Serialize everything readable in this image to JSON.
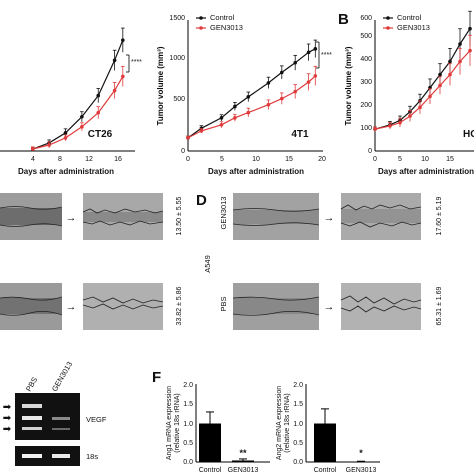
{
  "panels": {
    "b": "B",
    "d": "D",
    "f": "F"
  },
  "colors": {
    "control": "#111111",
    "gen3013": "#e03b3b",
    "bar_fill": "#000000",
    "error_bar": "#000000"
  },
  "scratch": {
    "c": [
      "13.50 ± 5.55",
      "33.82 ± 5.86"
    ],
    "d": {
      "cell_line": "A549",
      "groups": [
        "GEN3013",
        "PBS"
      ],
      "values": [
        "17.60 ± 5.19",
        "65.31 ± 1.69"
      ]
    }
  },
  "gel": {
    "lanes": [
      "PBS",
      "GEN3013"
    ],
    "targets": [
      "VEGF",
      "18s"
    ]
  },
  "chart_data": [
    {
      "type": "line",
      "x": [
        0,
        2,
        5,
        7,
        9,
        12,
        14,
        16,
        18,
        19
      ],
      "series": [
        {
          "name": "Control",
          "values": [
            150,
            260,
            380,
            510,
            620,
            780,
            900,
            1010,
            1130,
            1170
          ],
          "errors": [
            20,
            30,
            35,
            45,
            55,
            65,
            75,
            85,
            95,
            100
          ]
        },
        {
          "name": "GEN3013",
          "values": [
            150,
            230,
            300,
            380,
            440,
            530,
            600,
            680,
            790,
            860
          ],
          "errors": [
            20,
            25,
            35,
            40,
            50,
            55,
            65,
            80,
            95,
            110
          ]
        }
      ],
      "xlim": [
        0,
        20
      ],
      "ylim": [
        0,
        1500
      ]
    },
    {
      "type": "line",
      "x": [
        4,
        6,
        8,
        10,
        12,
        14,
        15
      ],
      "series": [
        {
          "name": "Control",
          "values": [
            2,
            8,
            18,
            34,
            55,
            90,
            110
          ],
          "errors": [
            2,
            3,
            4,
            5,
            7,
            10,
            12
          ]
        },
        {
          "name": "GEN3013",
          "values": [
            2,
            6,
            13,
            24,
            38,
            60,
            74
          ],
          "errors": [
            2,
            3,
            3,
            4,
            6,
            8,
            10
          ]
        }
      ],
      "xlim": [
        0,
        16
      ],
      "ylim": [
        0,
        130
      ]
    },
    {
      "type": "line",
      "x": [
        0,
        3,
        5,
        7,
        9,
        11,
        13,
        15,
        17,
        19
      ],
      "series": [
        {
          "name": "Control",
          "values": [
            100,
            120,
            140,
            180,
            230,
            290,
            350,
            410,
            490,
            560
          ],
          "errors": [
            10,
            15,
            20,
            25,
            30,
            40,
            50,
            60,
            70,
            80
          ]
        },
        {
          "name": "GEN3013",
          "values": [
            100,
            115,
            130,
            160,
            200,
            250,
            300,
            350,
            410,
            460
          ],
          "errors": [
            10,
            15,
            20,
            25,
            30,
            35,
            40,
            50,
            60,
            70
          ]
        }
      ],
      "xlim": [
        0,
        20
      ],
      "ylim": [
        0,
        600
      ]
    },
    {
      "type": "bar",
      "categories": [
        "Control",
        "GEN3013"
      ],
      "values": [
        1.0,
        0.04
      ],
      "errors": [
        0.3,
        0.04
      ],
      "ylim": [
        0,
        2.0
      ]
    },
    {
      "type": "bar",
      "categories": [
        "Control",
        "GEN3013"
      ],
      "values": [
        1.0,
        0.01
      ],
      "errors": [
        0.38,
        0.01
      ],
      "ylim": [
        0,
        2.0
      ]
    }
  ],
  "charts": [
    {
      "xlabel": "Days after administration",
      "ylabel": "Tumor volume (mm³)",
      "model_label": "4T1",
      "legend": [
        "Control",
        "GEN3013"
      ],
      "significance": "****",
      "x_ticks": [
        "0",
        "5",
        "10",
        "15",
        "20"
      ],
      "y_ticks": [
        "0",
        "500",
        "1000",
        "1500"
      ]
    },
    {
      "xlabel": "Days after administration",
      "model_label": "CT26",
      "significance": "****",
      "x_ticks": [
        "4",
        "8",
        "12",
        "16"
      ]
    },
    {
      "xlabel": "Days after administration",
      "ylabel": "Tumor volume (mm³)",
      "model_label": "HC",
      "legend": [
        "Control",
        "GEN3013"
      ],
      "x_ticks": [
        "0",
        "5",
        "10",
        "15"
      ],
      "y_ticks": [
        "0",
        "100",
        "200",
        "300",
        "400",
        "500",
        "600"
      ]
    },
    {
      "ylabel_line1": "Ang1 mRNA expression",
      "ylabel_line2": "(relative 18s rRNA)",
      "categories": [
        "Control",
        "GEN3013"
      ],
      "significance": "**",
      "y_ticks": [
        "0.0",
        "0.5",
        "1.0",
        "1.5",
        "2.0"
      ]
    },
    {
      "ylabel_line1": "Ang2 mRNA expression",
      "ylabel_line2": "(relative 18s rRNA)",
      "categories": [
        "Control",
        "GEN3013"
      ],
      "significance": "*",
      "y_ticks": [
        "0.0",
        "0.5",
        "1.0",
        "1.5",
        "2.0"
      ]
    }
  ]
}
